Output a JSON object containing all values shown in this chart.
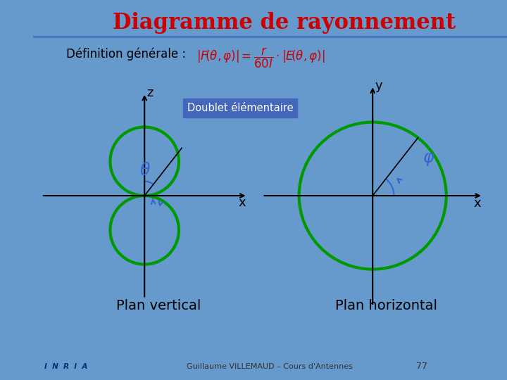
{
  "title": "Diagramme de rayonnement",
  "title_color": "#CC0000",
  "title_fontsize": 22,
  "bg_color": "#FFFFFF",
  "slide_bg": "#6699CC",
  "header_bar_color": "#4477BB",
  "definition_text": "Définition générale :",
  "doublet_label": "Doublet élémentaire",
  "doublet_bg": "#4466BB",
  "doublet_text_color": "#FFFFFF",
  "circle_color": "#009900",
  "circle_lw": 3.0,
  "theta_color": "#3366CC",
  "phi_color": "#3366CC",
  "plan_vertical_label": "Plan vertical",
  "plan_horizontal_label": "Plan horizontal",
  "footer_text": "Guillaume VILLEMAUD – Cours d'Antennes",
  "footer_page": "77",
  "left_bar_color": "#4477BB"
}
